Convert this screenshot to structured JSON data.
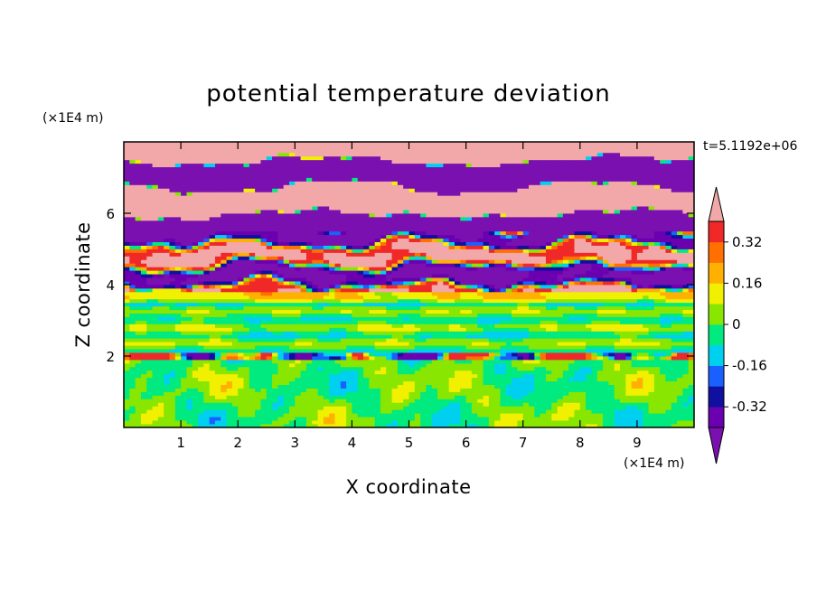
{
  "chart_data": {
    "type": "heatmap",
    "title": "potential temperature deviation",
    "xlabel": "X coordinate",
    "ylabel": "Z coordinate",
    "x_unit": "(×1E4 m)",
    "y_unit": "(×1E4 m)",
    "time_label": "t=5.1192e+06",
    "xlim": [
      0,
      10
    ],
    "ylim": [
      0,
      8
    ],
    "x_ticks": [
      "1",
      "2",
      "3",
      "4",
      "5",
      "6",
      "7",
      "8",
      "9"
    ],
    "y_ticks": [
      "2",
      "4",
      "6"
    ],
    "colorbar": {
      "levels": [
        -0.4,
        -0.32,
        -0.24,
        -0.16,
        -0.08,
        0,
        0.08,
        0.16,
        0.24,
        0.32,
        0.4
      ],
      "tick_labels": [
        "0.32",
        "0.16",
        "0",
        "-0.16",
        "-0.32"
      ],
      "tick_values": [
        0.32,
        0.16,
        0,
        -0.16,
        -0.32
      ],
      "colors": [
        "#6a00b0",
        "#1010a0",
        "#1a60ff",
        "#00d0f0",
        "#00ea80",
        "#88e600",
        "#f0f000",
        "#ffb000",
        "#ff7000",
        "#f02828"
      ],
      "under_color": "#7a10b0",
      "over_color": "#f2a8a8",
      "extend": "both"
    },
    "bands": [
      {
        "z_range": [
          0,
          1.9
        ],
        "description": "light green / green mixture near zero (-0.08 to 0.08)",
        "dominant_values": [
          -0.04,
          0.04
        ]
      },
      {
        "z_range": [
          1.9,
          2.1
        ],
        "description": "thin line with red and blue extremes",
        "dominant_values": [
          -0.36,
          0.36
        ]
      },
      {
        "z_range": [
          2.1,
          3.8
        ],
        "description": "stratified green/yellow layers with some blue patches",
        "dominant_values": [
          -0.04,
          0.04,
          0.12
        ]
      },
      {
        "z_range": [
          3.8,
          5.5
        ],
        "description": "mixed layers with purple, pink, red and cyan",
        "dominant_values": [
          -0.44,
          0.44,
          0.3
        ]
      },
      {
        "z_range": [
          5.5,
          8
        ],
        "description": "alternating bands of strong purple (below -0.4) and pink (above 0.4)",
        "dominant_values": [
          -0.44,
          0.44
        ]
      }
    ]
  }
}
